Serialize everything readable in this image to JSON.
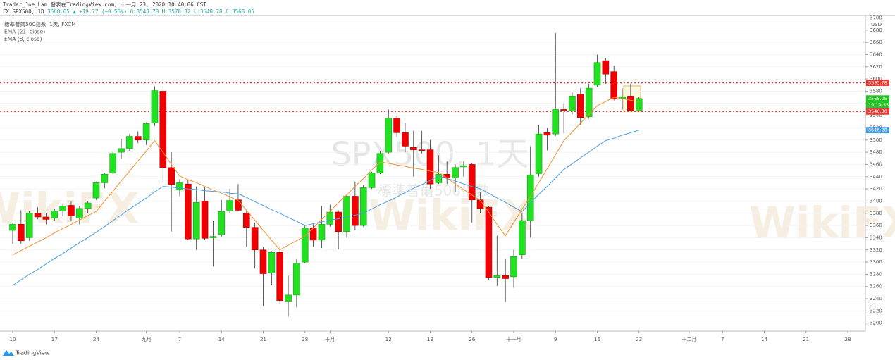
{
  "header": {
    "author_line": "Trader_Joe_Lam 發表在TradingView.com, 十一月 23, 2020 10:40:06 CST",
    "symbol": "FX:SPX500, 1D",
    "price": "3568.05",
    "change": "▲ +19.77 (+0.56%)",
    "ohlc": "O:3548.78 H:3570.32 L:3548.78 C:3568.05"
  },
  "footer": {
    "brand": "TradingView"
  },
  "chart_data": {
    "type": "candlestick",
    "legend": [
      "標準普爾500指數, 1天, FXCM",
      "EMA (21, close)",
      "EMA (8, close)"
    ],
    "watermark": "SPX500, 1天",
    "watermark_sub": "標準普爾500指數",
    "watermark_brand": "WikiFX",
    "y_unit": "USD",
    "countdown": "19:19:55",
    "grid": true,
    "up_color": "#22e022",
    "down_color": "#f00000",
    "wick_color": "#333333",
    "categories": [
      "10",
      null,
      null,
      null,
      null,
      "17",
      null,
      null,
      null,
      null,
      "24",
      null,
      null,
      null,
      null,
      null,
      "九月",
      null,
      null,
      null,
      "7",
      null,
      null,
      null,
      null,
      "14",
      null,
      null,
      null,
      null,
      "21",
      null,
      null,
      null,
      null,
      "28",
      null,
      null,
      "十月",
      null,
      null,
      null,
      null,
      null,
      null,
      "12",
      null,
      null,
      null,
      null,
      "19",
      null,
      null,
      null,
      null,
      "26",
      null,
      null,
      null,
      null,
      "十一月",
      null,
      null,
      null,
      null,
      "9",
      null,
      null,
      null,
      null,
      "16",
      null,
      null,
      null,
      null,
      "23",
      null,
      null,
      null,
      null,
      null,
      "十二月",
      null,
      null,
      null,
      "7",
      null,
      null,
      null,
      null,
      "14",
      null,
      null,
      null,
      null,
      "21",
      null,
      null,
      null,
      null,
      "28"
    ],
    "open": [
      3352,
      3362,
      3340,
      3380,
      3374,
      3372,
      3384,
      3393,
      3372,
      3388,
      3405,
      3430,
      3446,
      3480,
      3486,
      3506,
      3500,
      3528,
      3580,
      3455,
      3418,
      3428,
      3338,
      3400,
      3340,
      3345,
      3384,
      3402,
      3380,
      3357,
      3320,
      3282,
      3316,
      3236,
      3246,
      3300,
      3356,
      3336,
      3362,
      3382,
      3350,
      3408,
      3360,
      3422,
      3446,
      3480,
      3536,
      3512,
      3488,
      3484,
      3484,
      3430,
      3444,
      3438,
      3456,
      3460,
      3402,
      3390,
      3275,
      3278,
      3276,
      3312,
      3368,
      3445,
      3512,
      3510,
      3550,
      3548,
      3575,
      3538,
      3590,
      3630,
      3612,
      3568,
      3572,
      3548.78,
      null,
      null,
      null,
      null,
      null,
      null,
      null,
      null,
      null,
      null,
      null,
      null,
      null,
      null,
      null,
      null,
      null,
      null,
      null,
      null,
      null,
      null,
      null,
      null,
      null
    ],
    "high": [
      3365,
      3385,
      3384,
      3390,
      3380,
      3388,
      3395,
      3399,
      3392,
      3400,
      3432,
      3446,
      3481,
      3502,
      3510,
      3514,
      3529,
      3588,
      3588,
      3480,
      3436,
      3435,
      3424,
      3424,
      3368,
      3402,
      3420,
      3428,
      3385,
      3365,
      3325,
      3318,
      3327,
      3278,
      3305,
      3360,
      3362,
      3392,
      3394,
      3385,
      3410,
      3432,
      3426,
      3448,
      3482,
      3550,
      3540,
      3528,
      3515,
      3515,
      3500,
      3475,
      3465,
      3460,
      3465,
      3462,
      3415,
      3392,
      3343,
      3305,
      3320,
      3380,
      3490,
      3525,
      3520,
      3675,
      3560,
      3578,
      3585,
      3592,
      3640,
      3634,
      3622,
      3585,
      3592,
      3570.32,
      null,
      null,
      null,
      null,
      null,
      null,
      null,
      null,
      null,
      null,
      null,
      null,
      null,
      null,
      null,
      null,
      null,
      null,
      null,
      null,
      null,
      null,
      null,
      null,
      null
    ],
    "low": [
      3330,
      3330,
      3335,
      3370,
      3362,
      3368,
      3375,
      3368,
      3362,
      3380,
      3402,
      3421,
      3444,
      3469,
      3482,
      3495,
      3492,
      3523,
      3430,
      3350,
      3408,
      3336,
      3320,
      3336,
      3293,
      3342,
      3380,
      3383,
      3325,
      3290,
      3228,
      3262,
      3232,
      3211,
      3226,
      3298,
      3325,
      3323,
      3358,
      3321,
      3340,
      3352,
      3358,
      3420,
      3444,
      3478,
      3505,
      3480,
      3440,
      3478,
      3420,
      3428,
      3428,
      3415,
      3440,
      3365,
      3380,
      3270,
      3261,
      3235,
      3258,
      3305,
      3340,
      3440,
      3483,
      3507,
      3511,
      3542,
      3525,
      3535,
      3587,
      3592,
      3565,
      3550,
      3548,
      3548.78,
      null,
      null,
      null,
      null,
      null,
      null,
      null,
      null,
      null,
      null,
      null,
      null,
      null,
      null,
      null,
      null,
      null,
      null,
      null,
      null,
      null,
      null,
      null,
      null,
      null
    ],
    "close": [
      3362,
      3335,
      3380,
      3374,
      3370,
      3384,
      3392,
      3376,
      3388,
      3397,
      3430,
      3444,
      3478,
      3486,
      3506,
      3500,
      3527,
      3581,
      3455,
      3427,
      3430,
      3338,
      3398,
      3339,
      3342,
      3383,
      3401,
      3385,
      3357,
      3320,
      3281,
      3316,
      3237,
      3246,
      3298,
      3356,
      3336,
      3362,
      3382,
      3350,
      3408,
      3360,
      3422,
      3446,
      3478,
      3536,
      3512,
      3490,
      3484,
      3483,
      3428,
      3444,
      3438,
      3455,
      3458,
      3402,
      3388,
      3275,
      3278,
      3273,
      3309,
      3368,
      3443,
      3510,
      3508,
      3550,
      3548,
      3572,
      3537,
      3585,
      3627,
      3608,
      3567,
      3571,
      3548.28,
      3568.05,
      null,
      null,
      null,
      null,
      null,
      null,
      null,
      null,
      null,
      null,
      null,
      null,
      null,
      null,
      null,
      null,
      null,
      null,
      null,
      null,
      null,
      null,
      null,
      null,
      null
    ],
    "series": [
      {
        "name": "EMA (21, close)",
        "color": "#4a9fe0",
        "values": [
          3262,
          3271,
          3280,
          3288,
          3297,
          3306,
          3314,
          3323,
          3332,
          3340,
          3349,
          3358,
          3368,
          3377,
          3387,
          3396,
          3405,
          3415,
          3424,
          3423,
          3421,
          3420,
          3419,
          3417,
          3416,
          3415,
          3413,
          3412,
          3406,
          3399,
          3393,
          3386,
          3380,
          3373,
          3367,
          3360,
          3363,
          3366,
          3369,
          3371,
          3374,
          3377,
          3380,
          3387,
          3394,
          3400,
          3407,
          3414,
          3421,
          3427,
          3434,
          3441,
          3437,
          3433,
          3428,
          3424,
          3420,
          3413,
          3405,
          3398,
          3390,
          3383,
          3397,
          3411,
          3424,
          3438,
          3452,
          3461,
          3471,
          3480,
          3490,
          3499,
          3503,
          3508,
          3512,
          3516.28,
          null,
          null,
          null,
          null,
          null,
          null,
          null,
          null,
          null,
          null,
          null,
          null,
          null,
          null,
          null,
          null,
          null,
          null,
          null,
          null,
          null,
          null,
          null,
          null,
          null
        ]
      },
      {
        "name": "EMA (8, close)",
        "color": "#f0922f",
        "values": [
          3312,
          3319,
          3326,
          3333,
          3340,
          3348,
          3355,
          3362,
          3369,
          3376,
          3383,
          3400,
          3416,
          3433,
          3449,
          3466,
          3482,
          3499,
          3480,
          3460,
          3441,
          3435,
          3430,
          3424,
          3418,
          3413,
          3407,
          3401,
          3385,
          3369,
          3352,
          3336,
          3320,
          3328,
          3335,
          3343,
          3356,
          3370,
          3383,
          3397,
          3410,
          3424,
          3437,
          3451,
          3464,
          3462,
          3459,
          3457,
          3454,
          3452,
          3449,
          3447,
          3438,
          3428,
          3419,
          3410,
          3401,
          3382,
          3362,
          3343,
          3365,
          3387,
          3408,
          3430,
          3453,
          3476,
          3499,
          3513,
          3528,
          3542,
          3556,
          3563,
          3570,
          3568,
          3565,
          3562.58,
          null,
          null,
          null,
          null,
          null,
          null,
          null,
          null,
          null,
          null,
          null,
          null,
          null,
          null,
          null,
          null,
          null,
          null,
          null,
          null,
          null,
          null,
          null,
          null,
          null
        ]
      }
    ],
    "hlines": [
      {
        "value": 3593.78,
        "label": "3593.78"
      },
      {
        "value": 3546.8,
        "label": "3546.80"
      }
    ],
    "hline_color": "#e53935",
    "ylim": [
      3187,
      3704
    ],
    "yticks": [
      3200,
      3220,
      3240,
      3260,
      3280,
      3300,
      3320,
      3340,
      3360,
      3380,
      3400,
      3420,
      3440,
      3460,
      3480,
      3500,
      3520,
      3540,
      3560,
      3580,
      3600,
      3620,
      3640,
      3660,
      3680,
      3700
    ]
  }
}
